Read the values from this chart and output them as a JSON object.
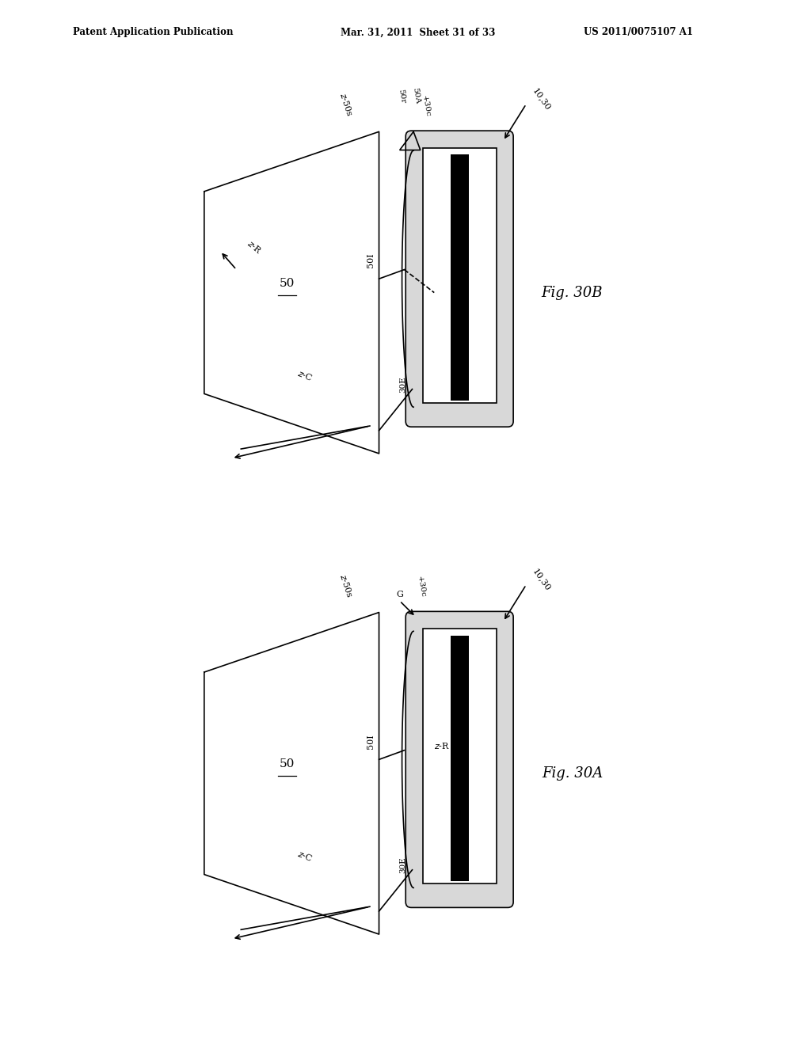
{
  "bg_color": "#ffffff",
  "header_left": "Patent Application Publication",
  "header_mid": "Mar. 31, 2011  Sheet 31 of 33",
  "header_right": "US 2011/0075107 A1",
  "fig_label_A": "Fig. 30A",
  "fig_label_B": "Fig. 30B",
  "line_color": "#000000",
  "lw": 1.2,
  "lw_thick": 2.5
}
